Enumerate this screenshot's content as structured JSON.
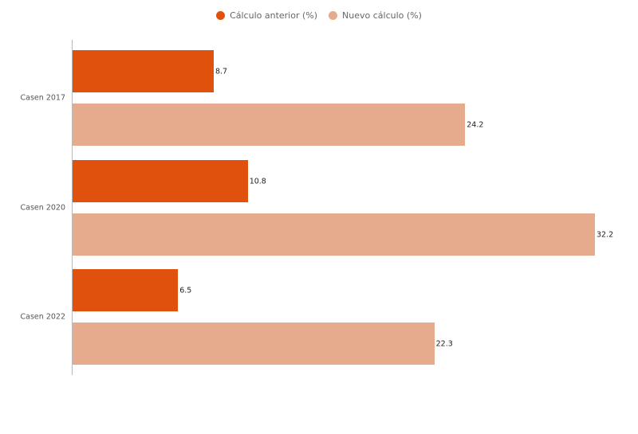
{
  "chart_data": {
    "type": "bar",
    "orientation": "horizontal",
    "title": "",
    "xlabel": "",
    "ylabel": "",
    "categories": [
      "Casen 2017",
      "Casen 2020",
      "Casen 2022"
    ],
    "series": [
      {
        "name": "Cálculo anterior (%)",
        "color": "#e0510e",
        "values": [
          8.7,
          10.8,
          6.5
        ],
        "labels": [
          "8.7",
          "10.8",
          "6.5"
        ]
      },
      {
        "name": "Nuevo cálculo (%)",
        "color": "#e6ab8d",
        "values": [
          24.2,
          32.2,
          22.3
        ],
        "labels": [
          "24.2",
          "32.2",
          "22.3"
        ]
      }
    ],
    "xlim": [
      0,
      32.2
    ],
    "grid": false,
    "legend_position": "top"
  }
}
